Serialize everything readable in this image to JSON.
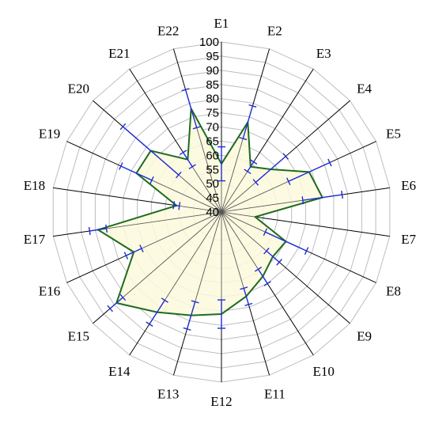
{
  "chart_data": {
    "type": "radar",
    "title": "",
    "categories": [
      "E1",
      "E2",
      "E3",
      "E4",
      "E5",
      "E6",
      "E7",
      "E8",
      "E9",
      "E10",
      "E11",
      "E12",
      "E13",
      "E14",
      "E15",
      "E16",
      "E17",
      "E18",
      "E19",
      "E20",
      "E21",
      "E22"
    ],
    "r_ticks": [
      "40",
      "45",
      "50",
      "55",
      "60",
      "65",
      "70",
      "75",
      "80",
      "85",
      "90",
      "95",
      "100"
    ],
    "rlim": [
      40,
      100
    ],
    "grid": true,
    "series": [
      {
        "values": [
          57,
          73,
          59,
          63,
          74,
          76,
          52,
          65,
          64,
          67,
          71,
          76,
          78,
          82,
          89,
          74,
          84,
          56,
          73,
          73,
          62,
          78
        ],
        "error": [
          6,
          6,
          2,
          7,
          8,
          7,
          0,
          8,
          3,
          3,
          3,
          5,
          5,
          5,
          3,
          3,
          3,
          1,
          6,
          13,
          3,
          7
        ]
      }
    ],
    "colors": {
      "line": "#1f6b1f",
      "fill": "#fbf9dc",
      "error": "#1f2dd6",
      "grid": "#bdbdbd",
      "spoke": "#000000"
    }
  }
}
